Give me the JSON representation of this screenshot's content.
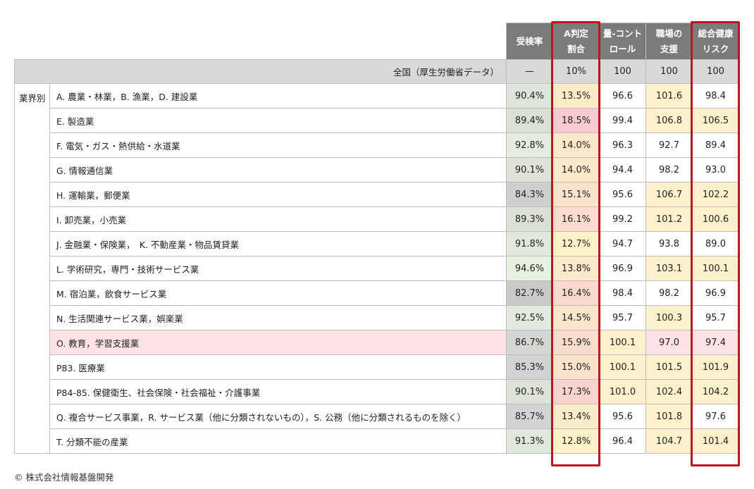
{
  "headers": {
    "uptake": "受検率",
    "a_rate": "A判定\n割合",
    "quantity_control": "量-コント\nロール",
    "workplace_support": "職場の\n支援",
    "total_risk": "総合健康\nリスク"
  },
  "national": {
    "label": "全国（厚生労働省データ）",
    "uptake": "—",
    "a_rate": "10%",
    "quantity_control": "100",
    "workplace_support": "100",
    "total_risk": "100"
  },
  "group_label": "業界別",
  "rows": [
    {
      "industry": "A. 農業・林業，B. 漁業，D. 建設業",
      "uptake": "90.4%",
      "a_rate": "13.5%",
      "qc": "96.6",
      "ws": "101.6",
      "risk": "98.4"
    },
    {
      "industry": "E. 製造業",
      "uptake": "89.4%",
      "a_rate": "18.5%",
      "qc": "99.4",
      "ws": "106.8",
      "risk": "106.5"
    },
    {
      "industry": "F. 電気・ガス・熱供給・水道業",
      "uptake": "92.8%",
      "a_rate": "14.0%",
      "qc": "96.3",
      "ws": "92.7",
      "risk": "89.4"
    },
    {
      "industry": "G. 情報通信業",
      "uptake": "90.1%",
      "a_rate": "14.0%",
      "qc": "94.4",
      "ws": "98.2",
      "risk": "93.0"
    },
    {
      "industry": "H. 運輸業，郵便業",
      "uptake": "84.3%",
      "a_rate": "15.1%",
      "qc": "95.6",
      "ws": "106.7",
      "risk": "102.2"
    },
    {
      "industry": "I. 卸売業，小売業",
      "uptake": "89.3%",
      "a_rate": "16.1%",
      "qc": "99.2",
      "ws": "101.2",
      "risk": "100.6"
    },
    {
      "industry": "J. 金融業・保険業，　K. 不動産業・物品賃貸業",
      "uptake": "91.8%",
      "a_rate": "12.7%",
      "qc": "94.7",
      "ws": "93.8",
      "risk": "89.0"
    },
    {
      "industry": "L. 学術研究，専門・技術サービス業",
      "uptake": "94.6%",
      "a_rate": "13.8%",
      "qc": "96.9",
      "ws": "103.1",
      "risk": "100.1"
    },
    {
      "industry": "M. 宿泊業，飲食サービス業",
      "uptake": "82.7%",
      "a_rate": "16.4%",
      "qc": "98.4",
      "ws": "98.2",
      "risk": "96.9"
    },
    {
      "industry": "N. 生活関連サービス業，娯楽業",
      "uptake": "92.5%",
      "a_rate": "14.5%",
      "qc": "95.7",
      "ws": "100.3",
      "risk": "95.7"
    },
    {
      "industry": "O. 教育，学習支援業",
      "uptake": "86.7%",
      "a_rate": "15.9%",
      "qc": "100.1",
      "ws": "97.0",
      "risk": "97.4",
      "highlight": true
    },
    {
      "industry": "P83. 医療業",
      "uptake": "85.3%",
      "a_rate": "15.0%",
      "qc": "100.1",
      "ws": "101.5",
      "risk": "101.9"
    },
    {
      "industry": "P84-85. 保健衛生、社会保険・社会福祉・介護事業",
      "uptake": "90.1%",
      "a_rate": "17.3%",
      "qc": "101.0",
      "ws": "102.4",
      "risk": "104.2"
    },
    {
      "industry": "Q. 複合サービス事業，R. サービス業（他に分類されないもの），S. 公務（他に分類されるものを除く）",
      "uptake": "85.7%",
      "a_rate": "13.4%",
      "qc": "95.6",
      "ws": "101.8",
      "risk": "97.6"
    },
    {
      "industry": "T. 分類不能の産業",
      "uptake": "91.3%",
      "a_rate": "12.8%",
      "qc": "96.4",
      "ws": "104.7",
      "risk": "101.4"
    }
  ],
  "colors": {
    "header_bg": "#7b7b7b",
    "national_bg": "#d9d9d9",
    "uptake_high": "#e9f3e3",
    "uptake_low": "#c8c8c8",
    "a_rate_high": "#f8cbd0",
    "a_rate_low": "#fdf3c8",
    "over_100": "#fdf0cc",
    "highlight_row": "#fde3e6",
    "outline": "#c1121f"
  },
  "copyright": "© 株式会社情報基盤開発"
}
